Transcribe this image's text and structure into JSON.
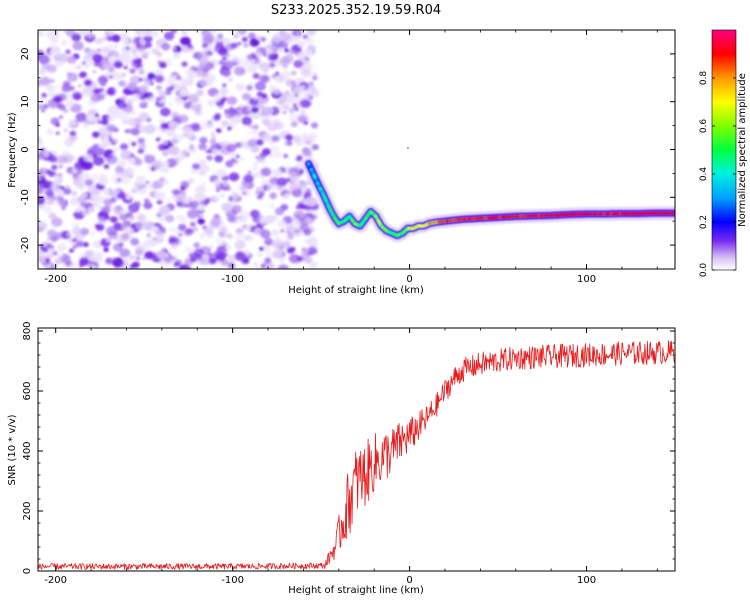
{
  "title": "S233.2025.352.19.59.R04",
  "chart_data": [
    {
      "type": "heatmap",
      "xlabel": "Height of straight line (km)",
      "ylabel": "Frequency (Hz)",
      "xlim": [
        -210,
        150
      ],
      "ylim": [
        -25,
        25
      ],
      "xticks": [
        -200,
        -100,
        0,
        100
      ],
      "yticks": [
        -20,
        -10,
        0,
        10,
        20
      ],
      "colorbar": {
        "label": "Normalized spectral amplitude",
        "ticks": [
          0.0,
          0.2,
          0.4,
          0.6,
          0.8
        ],
        "range": [
          0,
          1
        ]
      },
      "noise_region_x": [
        -210,
        -53
      ],
      "carrier_line": {
        "x": [
          -57,
          -52,
          -48,
          -45,
          -42,
          -40,
          -37,
          -34,
          -31,
          -28,
          -25,
          -22,
          -19,
          -16,
          -13,
          -10,
          -7,
          -4,
          -1,
          2,
          5,
          8,
          11,
          15,
          20,
          25,
          30,
          40,
          50,
          60,
          70,
          80,
          90,
          100,
          110,
          120,
          130,
          140,
          150
        ],
        "freq": [
          -3,
          -7,
          -10,
          -12.5,
          -14.5,
          -15.5,
          -15,
          -14,
          -15.5,
          -16,
          -14.5,
          -13,
          -14,
          -16,
          -17,
          -17.5,
          -18,
          -17.5,
          -16.5,
          -16.5,
          -16,
          -16,
          -15.5,
          -15.2,
          -15,
          -14.8,
          -14.6,
          -14.4,
          -14.2,
          -14,
          -13.9,
          -13.8,
          -13.6,
          -13.5,
          -13.5,
          -13.4,
          -13.4,
          -13.3,
          -13.3
        ],
        "amplitude": [
          0.3,
          0.35,
          0.4,
          0.45,
          0.5,
          0.5,
          0.45,
          0.5,
          0.55,
          0.5,
          0.45,
          0.5,
          0.55,
          0.6,
          0.55,
          0.5,
          0.5,
          0.55,
          0.6,
          0.65,
          0.7,
          0.7,
          0.75,
          0.8,
          0.85,
          0.85,
          0.9,
          0.9,
          0.92,
          0.9,
          0.9,
          0.92,
          0.95,
          0.95,
          0.9,
          0.92,
          0.95,
          0.95,
          0.95
        ]
      }
    },
    {
      "type": "line",
      "xlabel": "Height of straight line (km)",
      "ylabel": "SNR (10 * v/v)",
      "xlim": [
        -210,
        150
      ],
      "ylim": [
        0,
        810
      ],
      "xticks": [
        -200,
        -100,
        0,
        100
      ],
      "yticks": [
        0,
        200,
        400,
        600,
        800
      ],
      "color": "#e8191b",
      "series": [
        {
          "name": "SNR",
          "x": [
            -210,
            -100,
            -48,
            -42,
            -36,
            -30,
            -25,
            -20,
            -15,
            -10,
            -5,
            0,
            5,
            10,
            15,
            20,
            25,
            30,
            40,
            50,
            60,
            80,
            100,
            120,
            150
          ],
          "y": [
            15,
            15,
            18,
            80,
            200,
            300,
            320,
            360,
            380,
            400,
            430,
            450,
            480,
            510,
            550,
            600,
            640,
            670,
            690,
            700,
            710,
            715,
            720,
            725,
            730
          ],
          "noise_amplitude": [
            10,
            10,
            10,
            40,
            110,
            120,
            110,
            100,
            90,
            80,
            70,
            60,
            50,
            45,
            40,
            40,
            40,
            40,
            40,
            40,
            40,
            40,
            40,
            40,
            40
          ]
        }
      ]
    }
  ]
}
